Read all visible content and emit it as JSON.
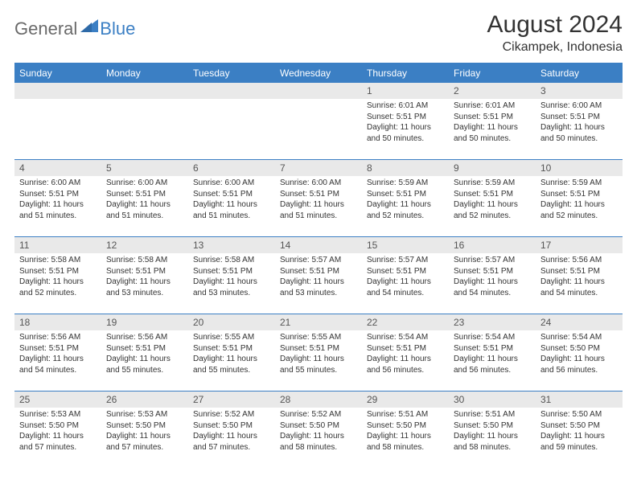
{
  "logo": {
    "general": "General",
    "blue": "Blue"
  },
  "title": "August 2024",
  "location": "Cikampek, Indonesia",
  "colors": {
    "header_bg": "#3b7fc4",
    "header_text": "#ffffff",
    "daynum_bg": "#e9e9e9",
    "grid_line": "#3b7fc4",
    "body_text": "#333333",
    "logo_gray": "#6a6a6a",
    "logo_blue": "#3b7fc4"
  },
  "day_headers": [
    "Sunday",
    "Monday",
    "Tuesday",
    "Wednesday",
    "Thursday",
    "Friday",
    "Saturday"
  ],
  "weeks": [
    [
      null,
      null,
      null,
      null,
      {
        "n": "1",
        "sr": "6:01 AM",
        "ss": "5:51 PM",
        "dl": "11 hours and 50 minutes."
      },
      {
        "n": "2",
        "sr": "6:01 AM",
        "ss": "5:51 PM",
        "dl": "11 hours and 50 minutes."
      },
      {
        "n": "3",
        "sr": "6:00 AM",
        "ss": "5:51 PM",
        "dl": "11 hours and 50 minutes."
      }
    ],
    [
      {
        "n": "4",
        "sr": "6:00 AM",
        "ss": "5:51 PM",
        "dl": "11 hours and 51 minutes."
      },
      {
        "n": "5",
        "sr": "6:00 AM",
        "ss": "5:51 PM",
        "dl": "11 hours and 51 minutes."
      },
      {
        "n": "6",
        "sr": "6:00 AM",
        "ss": "5:51 PM",
        "dl": "11 hours and 51 minutes."
      },
      {
        "n": "7",
        "sr": "6:00 AM",
        "ss": "5:51 PM",
        "dl": "11 hours and 51 minutes."
      },
      {
        "n": "8",
        "sr": "5:59 AM",
        "ss": "5:51 PM",
        "dl": "11 hours and 52 minutes."
      },
      {
        "n": "9",
        "sr": "5:59 AM",
        "ss": "5:51 PM",
        "dl": "11 hours and 52 minutes."
      },
      {
        "n": "10",
        "sr": "5:59 AM",
        "ss": "5:51 PM",
        "dl": "11 hours and 52 minutes."
      }
    ],
    [
      {
        "n": "11",
        "sr": "5:58 AM",
        "ss": "5:51 PM",
        "dl": "11 hours and 52 minutes."
      },
      {
        "n": "12",
        "sr": "5:58 AM",
        "ss": "5:51 PM",
        "dl": "11 hours and 53 minutes."
      },
      {
        "n": "13",
        "sr": "5:58 AM",
        "ss": "5:51 PM",
        "dl": "11 hours and 53 minutes."
      },
      {
        "n": "14",
        "sr": "5:57 AM",
        "ss": "5:51 PM",
        "dl": "11 hours and 53 minutes."
      },
      {
        "n": "15",
        "sr": "5:57 AM",
        "ss": "5:51 PM",
        "dl": "11 hours and 54 minutes."
      },
      {
        "n": "16",
        "sr": "5:57 AM",
        "ss": "5:51 PM",
        "dl": "11 hours and 54 minutes."
      },
      {
        "n": "17",
        "sr": "5:56 AM",
        "ss": "5:51 PM",
        "dl": "11 hours and 54 minutes."
      }
    ],
    [
      {
        "n": "18",
        "sr": "5:56 AM",
        "ss": "5:51 PM",
        "dl": "11 hours and 54 minutes."
      },
      {
        "n": "19",
        "sr": "5:56 AM",
        "ss": "5:51 PM",
        "dl": "11 hours and 55 minutes."
      },
      {
        "n": "20",
        "sr": "5:55 AM",
        "ss": "5:51 PM",
        "dl": "11 hours and 55 minutes."
      },
      {
        "n": "21",
        "sr": "5:55 AM",
        "ss": "5:51 PM",
        "dl": "11 hours and 55 minutes."
      },
      {
        "n": "22",
        "sr": "5:54 AM",
        "ss": "5:51 PM",
        "dl": "11 hours and 56 minutes."
      },
      {
        "n": "23",
        "sr": "5:54 AM",
        "ss": "5:51 PM",
        "dl": "11 hours and 56 minutes."
      },
      {
        "n": "24",
        "sr": "5:54 AM",
        "ss": "5:50 PM",
        "dl": "11 hours and 56 minutes."
      }
    ],
    [
      {
        "n": "25",
        "sr": "5:53 AM",
        "ss": "5:50 PM",
        "dl": "11 hours and 57 minutes."
      },
      {
        "n": "26",
        "sr": "5:53 AM",
        "ss": "5:50 PM",
        "dl": "11 hours and 57 minutes."
      },
      {
        "n": "27",
        "sr": "5:52 AM",
        "ss": "5:50 PM",
        "dl": "11 hours and 57 minutes."
      },
      {
        "n": "28",
        "sr": "5:52 AM",
        "ss": "5:50 PM",
        "dl": "11 hours and 58 minutes."
      },
      {
        "n": "29",
        "sr": "5:51 AM",
        "ss": "5:50 PM",
        "dl": "11 hours and 58 minutes."
      },
      {
        "n": "30",
        "sr": "5:51 AM",
        "ss": "5:50 PM",
        "dl": "11 hours and 58 minutes."
      },
      {
        "n": "31",
        "sr": "5:50 AM",
        "ss": "5:50 PM",
        "dl": "11 hours and 59 minutes."
      }
    ]
  ],
  "labels": {
    "sunrise": "Sunrise:",
    "sunset": "Sunset:",
    "daylight": "Daylight:"
  }
}
